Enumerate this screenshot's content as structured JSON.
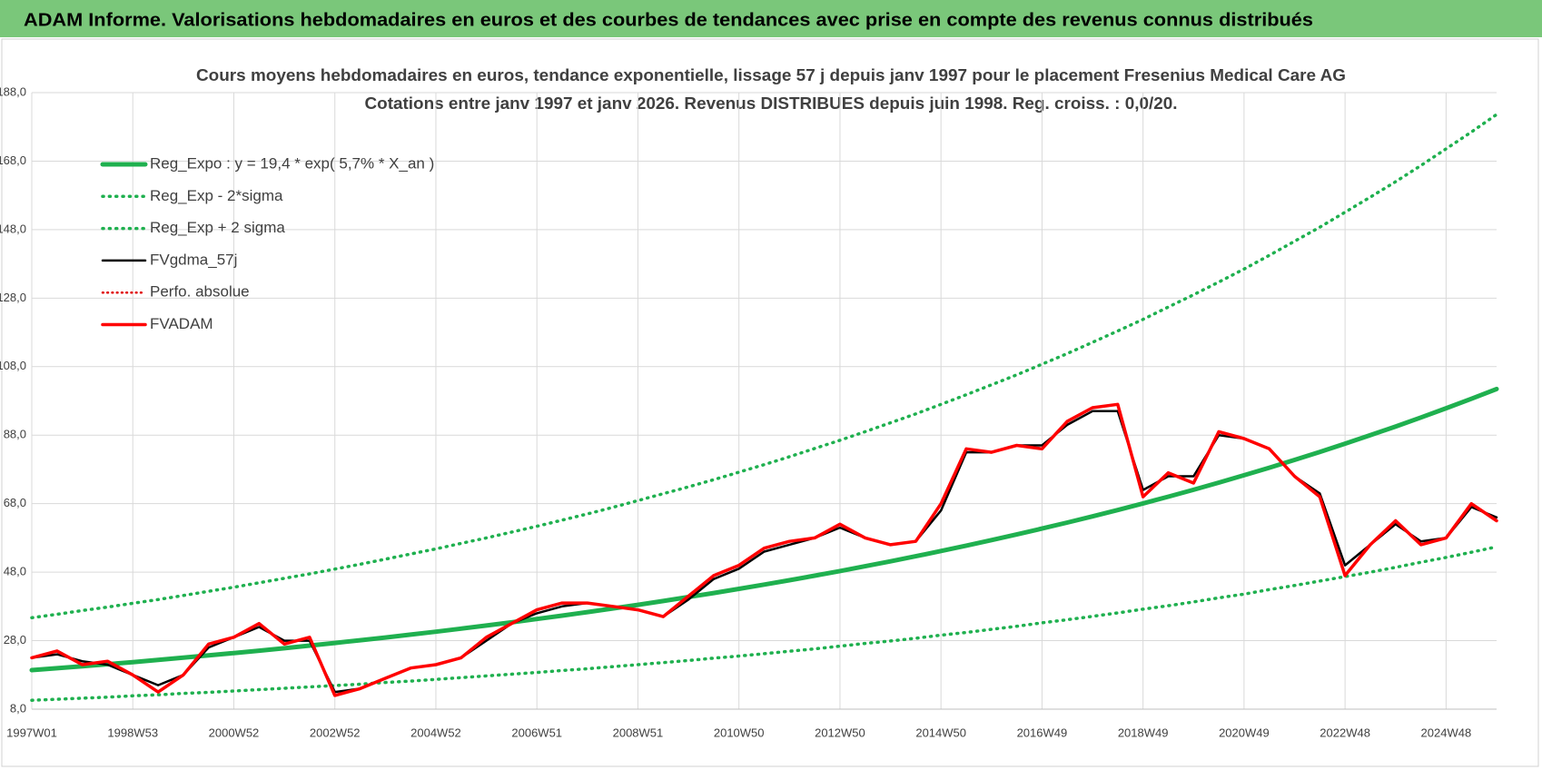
{
  "header": {
    "title": "ADAM Informe. Valorisations hebdomadaires en euros et des courbes de tendances avec prise en compte des revenus connus distribués"
  },
  "chart_data": {
    "type": "line",
    "title": "Cours moyens hebdomadaires en euros, tendance exponentielle, lissage 57 j depuis janv 1997 pour le placement Fresenius Medical Care AG",
    "subtitle": "Cotations entre janv 1997 et janv 2026. Revenus DISTRIBUES depuis juin 1998. Reg. croiss. : 0,0/20.",
    "categories": [
      "1997W01",
      null,
      null,
      null,
      "1998W53",
      null,
      null,
      null,
      "2000W52",
      null,
      null,
      null,
      "2002W52",
      null,
      null,
      null,
      "2004W52",
      null,
      null,
      null,
      "2006W51",
      null,
      null,
      null,
      "2008W51",
      null,
      null,
      null,
      "2010W50",
      null,
      null,
      null,
      "2012W50",
      null,
      null,
      null,
      "2014W50",
      null,
      null,
      null,
      "2016W49",
      null,
      null,
      null,
      "2018W49",
      null,
      null,
      null,
      "2020W49",
      null,
      null,
      null,
      "2022W48",
      null,
      null,
      null,
      "2024W48",
      null,
      null
    ],
    "ylim": [
      8,
      188
    ],
    "yticks": [
      {
        "value": 8,
        "label": "8,0"
      },
      {
        "value": 28,
        "label": "28,0"
      },
      {
        "value": 48,
        "label": "48,0"
      },
      {
        "value": 68,
        "label": "68,0"
      },
      {
        "value": 88,
        "label": "88,0"
      },
      {
        "value": 108,
        "label": "108,0"
      },
      {
        "value": 128,
        "label": "128,0"
      },
      {
        "value": 148,
        "label": "148,0"
      },
      {
        "value": 168,
        "label": "168,0"
      },
      {
        "value": 188,
        "label": "188,0"
      }
    ],
    "grid": true,
    "legend": "top-left",
    "series": [
      {
        "name": "Reg_Expo : y = 19,4 * exp( 5,7% *  X_an )",
        "color": "#1fb04f",
        "style": "solid",
        "width": 5,
        "values": [
          19.4,
          19.96,
          20.54,
          21.13,
          21.74,
          22.37,
          23.02,
          23.69,
          24.37,
          25.08,
          25.8,
          26.55,
          27.32,
          28.11,
          28.92,
          29.76,
          30.62,
          31.51,
          32.42,
          33.35,
          34.32,
          35.31,
          36.34,
          37.39,
          38.47,
          39.58,
          40.73,
          41.91,
          43.12,
          44.37,
          45.65,
          46.97,
          48.33,
          49.73,
          51.17,
          52.65,
          54.17,
          55.74,
          57.35,
          59.01,
          60.72,
          62.48,
          64.28,
          66.14,
          68.06,
          70.03,
          72.05,
          74.14,
          76.28,
          78.49,
          80.76,
          83.1,
          85.51,
          87.98,
          90.52,
          93.15,
          95.84,
          98.61,
          101.47
        ]
      },
      {
        "name": "Reg_Exp - 2*sigma",
        "color": "#1fb04f",
        "style": "dotted",
        "width": 3.5,
        "values": [
          10.6,
          10.9,
          11.2,
          11.5,
          11.9,
          12.2,
          12.6,
          12.9,
          13.3,
          13.7,
          14.1,
          14.5,
          14.9,
          15.3,
          15.8,
          16.2,
          16.7,
          17.2,
          17.7,
          18.2,
          18.7,
          19.3,
          19.8,
          20.4,
          21.0,
          21.6,
          22.2,
          22.9,
          23.5,
          24.2,
          24.9,
          25.6,
          26.4,
          27.2,
          27.9,
          28.7,
          29.6,
          30.4,
          31.3,
          32.2,
          33.2,
          34.1,
          35.1,
          36.1,
          37.2,
          38.2,
          39.3,
          40.5,
          41.6,
          42.9,
          44.1,
          45.4,
          46.7,
          48.0,
          49.4,
          50.9,
          52.3,
          53.8,
          55.4
        ]
      },
      {
        "name": "Reg_Exp + 2 sigma",
        "color": "#1fb04f",
        "style": "dotted",
        "width": 3.5,
        "values": [
          34.7,
          35.7,
          36.8,
          37.8,
          38.9,
          40.0,
          41.2,
          42.4,
          43.6,
          44.9,
          46.2,
          47.5,
          48.9,
          50.3,
          51.8,
          53.3,
          54.8,
          56.4,
          58.0,
          59.7,
          61.4,
          63.2,
          65.0,
          66.9,
          68.9,
          70.9,
          72.9,
          75.0,
          77.2,
          79.4,
          81.7,
          84.1,
          86.5,
          89.0,
          91.6,
          94.2,
          97.0,
          99.8,
          102.7,
          105.6,
          108.7,
          111.8,
          115.1,
          118.4,
          121.8,
          125.4,
          129.0,
          132.7,
          136.5,
          140.5,
          144.6,
          148.7,
          153.1,
          157.5,
          162.0,
          166.7,
          171.6,
          176.5,
          181.6
        ]
      },
      {
        "name": "FVgdma_57j",
        "color": "#000000",
        "style": "solid",
        "width": 2.5,
        "values": [
          23,
          24,
          22,
          21,
          18,
          15,
          18,
          26,
          29,
          32,
          28,
          28,
          13,
          14,
          17,
          20,
          21,
          23,
          28,
          33,
          36,
          38,
          39,
          38,
          37,
          35,
          40,
          46,
          49,
          54,
          56,
          58,
          61,
          58,
          56,
          57,
          66,
          83,
          83,
          85,
          85,
          91,
          95,
          95,
          72,
          76,
          76,
          88,
          87,
          84,
          76,
          71,
          50,
          56,
          62,
          57,
          58,
          67,
          64
        ]
      },
      {
        "name": "Perfo. absolue",
        "color": "#e00000",
        "style": "dotted",
        "width": 2.5,
        "values": [
          null,
          null,
          null,
          null,
          null,
          null,
          null,
          null,
          null,
          null,
          null,
          null,
          null,
          null,
          null,
          null,
          null,
          null,
          null,
          null,
          null,
          null,
          null,
          null,
          null,
          null,
          null,
          null,
          null,
          null,
          null,
          null,
          null,
          null,
          null,
          null,
          null,
          null,
          null,
          null,
          null,
          null,
          null,
          null,
          null,
          null,
          null,
          null,
          null,
          null,
          null,
          null,
          null,
          null,
          null,
          null,
          null,
          null,
          null
        ]
      },
      {
        "name": "FVADAM",
        "color": "#ff0000",
        "style": "solid",
        "width": 3.5,
        "values": [
          23,
          25,
          21,
          22,
          18,
          13,
          18,
          27,
          29,
          33,
          27,
          29,
          12,
          14,
          17,
          20,
          21,
          23,
          29,
          33,
          37,
          39,
          39,
          38,
          37,
          35,
          41,
          47,
          50,
          55,
          57,
          58,
          62,
          58,
          56,
          57,
          68,
          84,
          83,
          85,
          84,
          92,
          96,
          97,
          70,
          77,
          74,
          89,
          87,
          84,
          76,
          70,
          47,
          56,
          63,
          56,
          58,
          68,
          63
        ]
      }
    ]
  }
}
